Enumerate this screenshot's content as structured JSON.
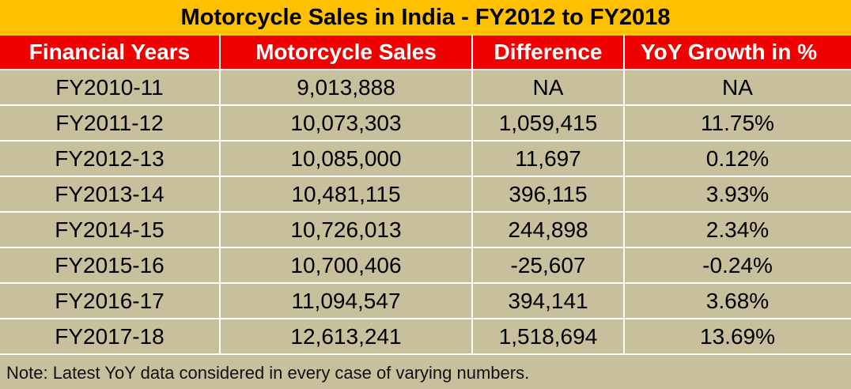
{
  "title": "Motorcycle Sales in India - FY2012 to FY2018",
  "colors": {
    "title_bg": "#ffc000",
    "header_bg": "#f00000",
    "body_bg": "#c8bf9c"
  },
  "table": {
    "headers": [
      "Financial Years",
      "Motorcycle Sales",
      "Difference",
      "YoY Growth in %"
    ],
    "rows": [
      [
        "FY2010-11",
        "9,013,888",
        "NA",
        "NA"
      ],
      [
        "FY2011-12",
        "10,073,303",
        "1,059,415",
        "11.75%"
      ],
      [
        "FY2012-13",
        "10,085,000",
        "11,697",
        "0.12%"
      ],
      [
        "FY2013-14",
        "10,481,115",
        "396,115",
        "3.93%"
      ],
      [
        "FY2014-15",
        "10,726,013",
        "244,898",
        "2.34%"
      ],
      [
        "FY2015-16",
        "10,700,406",
        "-25,607",
        "-0.24%"
      ],
      [
        "FY2016-17",
        "11,094,547",
        "394,141",
        "3.68%"
      ],
      [
        "FY2017-18",
        "12,613,241",
        "1,518,694",
        "13.69%"
      ]
    ]
  },
  "note": "Note: Latest YoY data considered in every case of varying numbers."
}
